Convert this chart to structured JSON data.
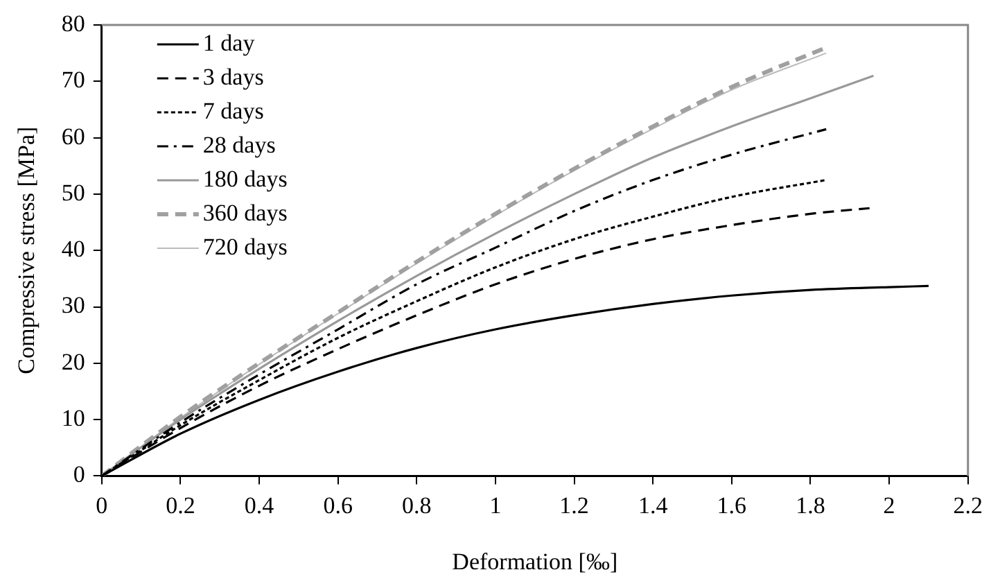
{
  "chart_data": {
    "type": "line",
    "xlabel": "Deformation [‰]",
    "ylabel": "Compressive stress [MPa]",
    "xlim": [
      0,
      2.2
    ],
    "xticks": [
      0,
      0.2,
      0.4,
      0.6,
      0.8,
      1,
      1.2,
      1.4,
      1.6,
      1.8,
      2,
      2.2
    ],
    "ylim": [
      0,
      80
    ],
    "yticks": [
      0,
      10,
      20,
      30,
      40,
      50,
      60,
      70,
      80
    ],
    "grid": false,
    "legend": "top left",
    "marker": "none",
    "series": [
      {
        "name": "1 day",
        "color": "#000000",
        "line_style": "solid",
        "x": [
          0,
          0.2,
          0.4,
          0.6,
          0.8,
          1,
          1.2,
          1.4,
          1.6,
          1.8,
          2,
          2.1
        ],
        "values": [
          0,
          7.5,
          13.5,
          18.5,
          22.7,
          26,
          28.5,
          30.5,
          32,
          33,
          33.5,
          33.7
        ]
      },
      {
        "name": "3 days",
        "color": "#000000",
        "line_style": "dashed",
        "x": [
          0,
          0.2,
          0.4,
          0.6,
          0.8,
          1,
          1.2,
          1.4,
          1.6,
          1.8,
          1.95
        ],
        "values": [
          0,
          8.5,
          16,
          22.5,
          28.5,
          34,
          38.5,
          42,
          44.5,
          46.5,
          47.5
        ]
      },
      {
        "name": "7 days",
        "color": "#000000",
        "line_style": "dotted",
        "x": [
          0,
          0.2,
          0.4,
          0.6,
          0.8,
          1,
          1.2,
          1.4,
          1.6,
          1.84
        ],
        "values": [
          0,
          9,
          17,
          24.5,
          31,
          37,
          42,
          46,
          49.5,
          52.5
        ]
      },
      {
        "name": "28 days",
        "color": "#000000",
        "line_style": "dashdot",
        "x": [
          0,
          0.2,
          0.4,
          0.6,
          0.8,
          1,
          1.2,
          1.4,
          1.6,
          1.84
        ],
        "values": [
          0,
          9.5,
          18,
          26,
          34,
          40.5,
          47,
          52.5,
          57,
          61.5
        ]
      },
      {
        "name": "180 days",
        "color": "#999999",
        "line_style": "solid",
        "x": [
          0,
          0.2,
          0.4,
          0.6,
          0.8,
          1,
          1.2,
          1.4,
          1.6,
          1.8,
          1.96
        ],
        "values": [
          0,
          10,
          19,
          27.5,
          35.5,
          43,
          50,
          56.5,
          62,
          67,
          71
        ]
      },
      {
        "name": "360 days",
        "color": "#a0a0a0",
        "line_style": "dashed",
        "x": [
          0,
          0.2,
          0.4,
          0.6,
          0.8,
          1,
          1.2,
          1.4,
          1.6,
          1.84
        ],
        "values": [
          0,
          10.5,
          20,
          29,
          38,
          46.5,
          54.5,
          62,
          69,
          76
        ]
      },
      {
        "name": "720 days",
        "color": "#bbbbbb",
        "line_style": "solid",
        "x": [
          0,
          0.2,
          0.4,
          0.6,
          0.8,
          1,
          1.2,
          1.4,
          1.6,
          1.84
        ],
        "values": [
          0,
          10.3,
          19.8,
          28.8,
          37.7,
          46.2,
          54.2,
          61.6,
          68.5,
          75
        ]
      }
    ]
  }
}
